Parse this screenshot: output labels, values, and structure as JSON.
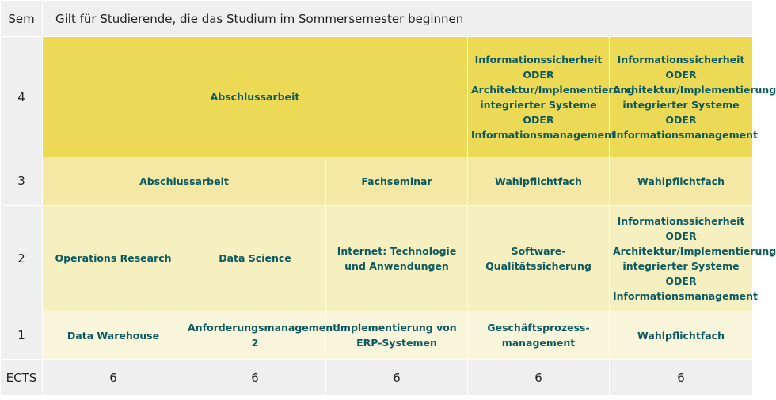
{
  "header": {
    "sem_label": "Sem",
    "title": "Gilt für Studierende, die das Studium im Sommersemester beginnen"
  },
  "rows": {
    "sem4": {
      "num": "4",
      "c1": "Abschlussarbeit",
      "c4": [
        "Informationssicherheit",
        "ODER",
        "Architektur/Implementierung",
        "integrierter Systeme",
        "ODER",
        "Informationsmanagement"
      ],
      "c5": [
        "Informationssicherheit",
        "ODER",
        "Architektur/Implementierung",
        "integrierter Systeme",
        "ODER",
        "Informationsmanagement"
      ]
    },
    "sem3": {
      "num": "3",
      "c1": "Abschlussarbeit",
      "c3": "Fachseminar",
      "c4": "Wahlpflichtfach",
      "c5": "Wahlpflichtfach"
    },
    "sem2": {
      "num": "2",
      "c1": "Operations Research",
      "c2": "Data Science",
      "c3": [
        "Internet: Technologie",
        "und Anwendungen"
      ],
      "c4": "Software-Qualitätssicherung",
      "c5": [
        "Informationssicherheit",
        "ODER",
        "Architektur/Implementierung",
        "integrierter Systeme",
        "ODER",
        "Informationsmanagement"
      ]
    },
    "sem1": {
      "num": "1",
      "c1": "Data Warehouse",
      "c2": "Anforderungsmanagement 2",
      "c3": [
        "Implementierung von",
        "ERP-Systemen"
      ],
      "c4": [
        "Geschäftsprozess-",
        "management"
      ],
      "c5": "Wahlpflichtfach"
    }
  },
  "ects": {
    "label": "ECTS",
    "values": [
      "6",
      "6",
      "6",
      "6",
      "6"
    ]
  }
}
